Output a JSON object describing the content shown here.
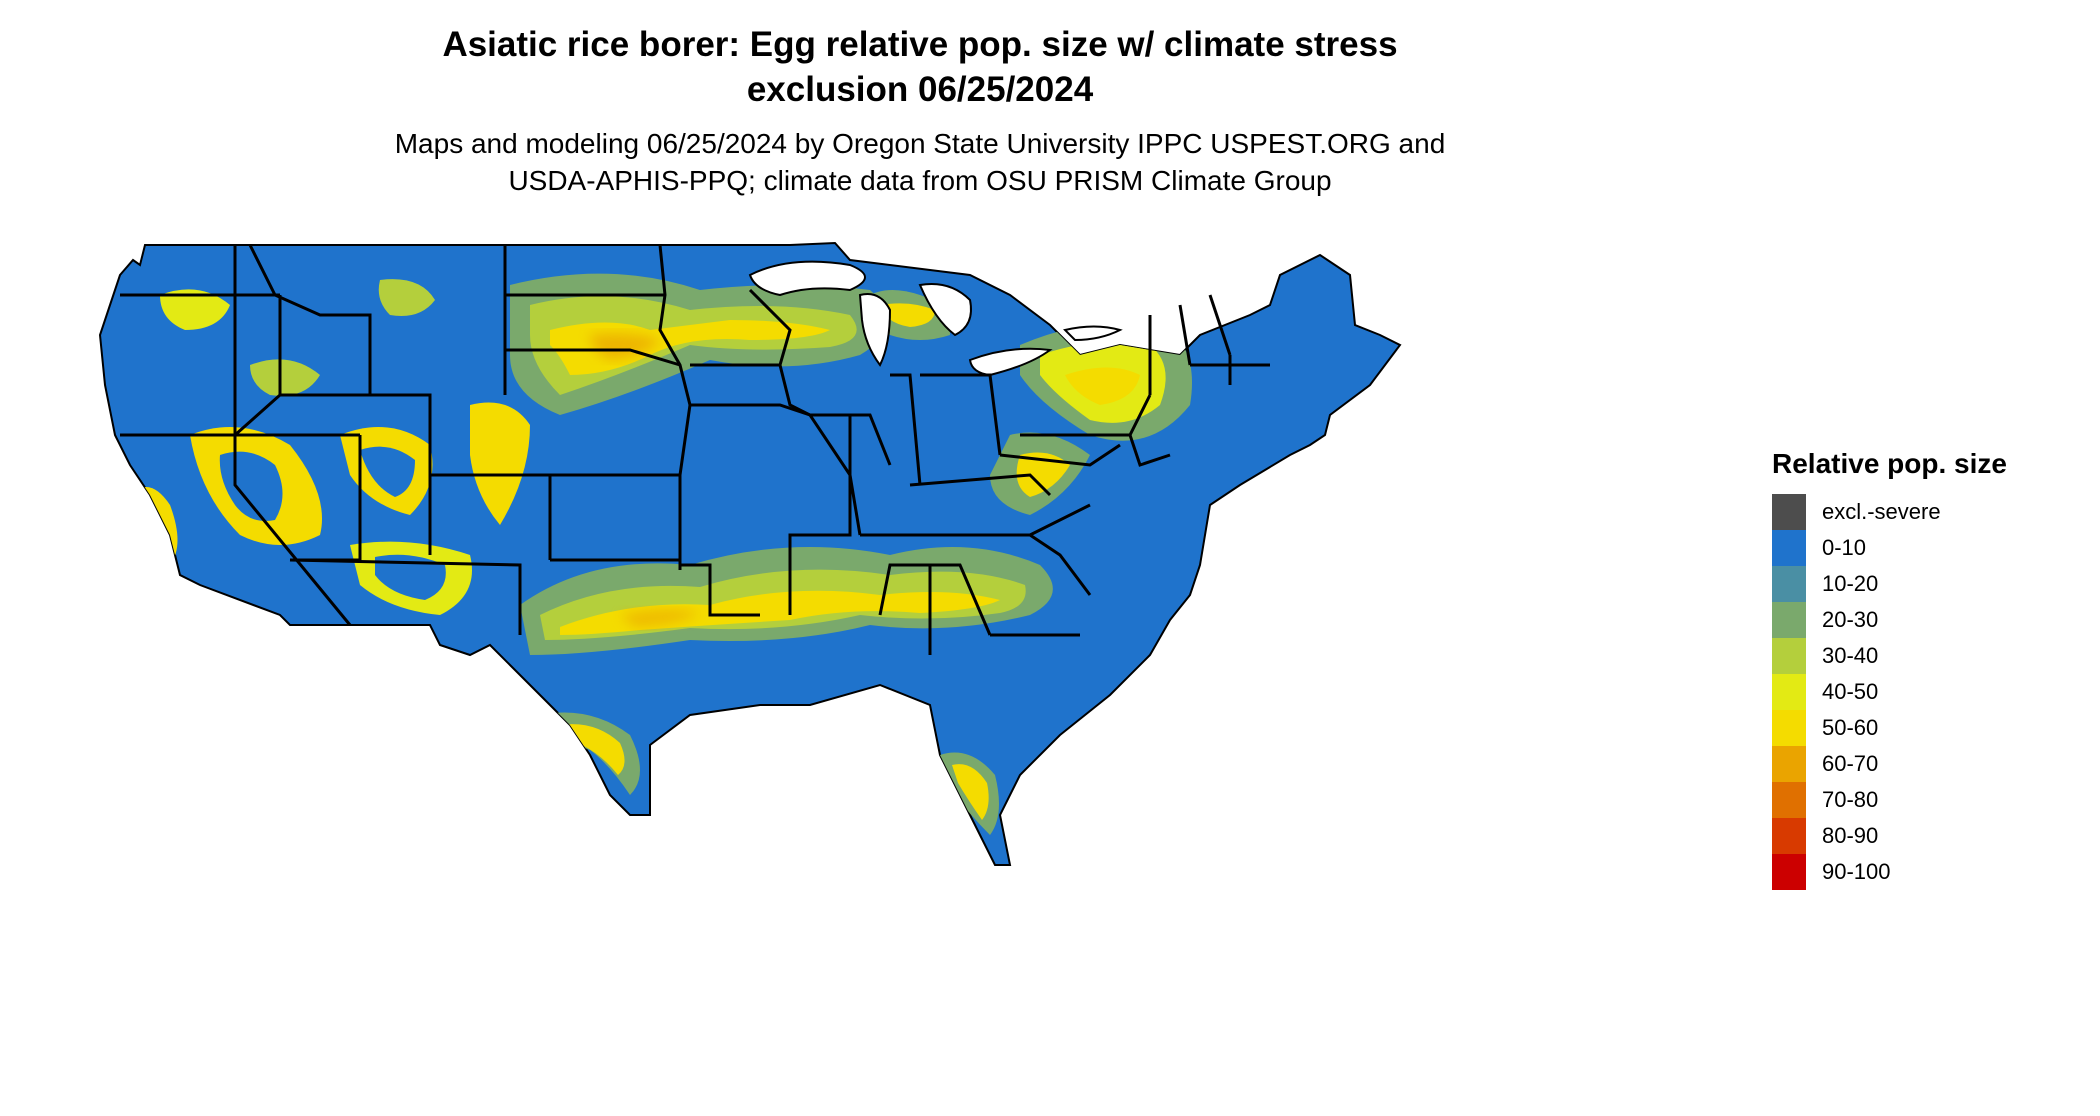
{
  "title": {
    "line1": "Asiatic rice borer: Egg relative pop. size w/ climate stress",
    "line2": "exclusion 06/25/2024"
  },
  "subtitle": {
    "line1": "Maps and modeling 06/25/2024 by Oregon State University IPPC USPEST.ORG and",
    "line2": "USDA-APHIS-PPQ; climate data from OSU PRISM Climate Group"
  },
  "legend": {
    "title": "Relative pop. size",
    "items": [
      {
        "label": "excl.-severe",
        "color": "#4d4d4d"
      },
      {
        "label": "0-10",
        "color": "#1f73cc"
      },
      {
        "label": "10-20",
        "color": "#4a8fa4"
      },
      {
        "label": "20-30",
        "color": "#7aa96c"
      },
      {
        "label": "30-40",
        "color": "#b4cf3c"
      },
      {
        "label": "40-50",
        "color": "#e3ea14"
      },
      {
        "label": "50-60",
        "color": "#f4dc00"
      },
      {
        "label": "60-70",
        "color": "#eaa400"
      },
      {
        "label": "70-80",
        "color": "#e07000"
      },
      {
        "label": "80-90",
        "color": "#d83a00"
      },
      {
        "label": "90-100",
        "color": "#cc0000"
      }
    ]
  },
  "map": {
    "region": "Contiguous United States",
    "base_class": "0-10",
    "base_color": "#1f73cc",
    "border_color": "#000000"
  }
}
